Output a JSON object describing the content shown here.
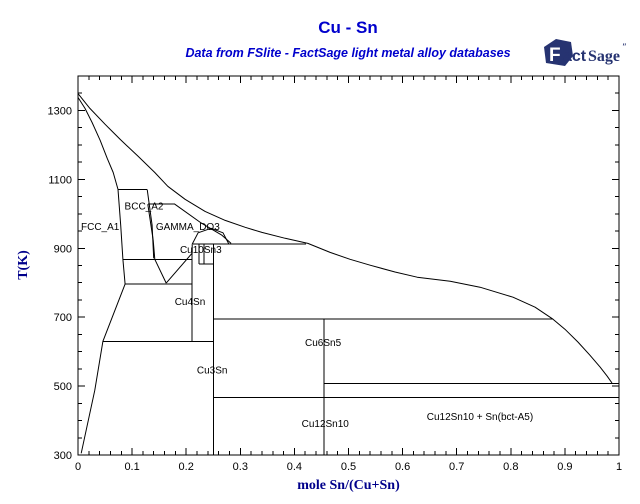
{
  "title": "Cu - Sn",
  "subtitle": "Data from FSlite - FactSage light metal alloy databases",
  "logo": {
    "f": "F",
    "act": "act",
    "sage": "Sage",
    "mark": "″"
  },
  "colors": {
    "title_blue": "#0000CC",
    "axis_title_blue": "#00008B",
    "logo_navy": "#263371",
    "line_black": "#000000",
    "background": "#FFFFFF"
  },
  "axes": {
    "x": {
      "label": "mole Sn/(Cu+Sn)",
      "min": 0,
      "max": 1,
      "major_ticks": [
        0,
        0.1,
        0.2,
        0.3,
        0.4,
        0.5,
        0.6,
        0.7,
        0.8,
        0.9,
        1
      ],
      "tick_labels": [
        "0",
        "0.1",
        "0.2",
        "0.3",
        "0.4",
        "0.5",
        "0.6",
        "0.7",
        "0.8",
        "0.9",
        "1"
      ],
      "minor_step": 0.02
    },
    "y": {
      "label": "T(K)",
      "min": 300,
      "max": 1400,
      "major_ticks": [
        300,
        500,
        700,
        900,
        1100,
        1300
      ],
      "tick_labels": [
        "300",
        "500",
        "700",
        "900",
        "1100",
        "1300"
      ],
      "minor_step": 50
    }
  },
  "chart_data": {
    "type": "line",
    "description": "Cu-Sn binary phase diagram, T(K) vs mole Sn/(Cu+Sn)",
    "xlabel": "mole Sn/(Cu+Sn)",
    "ylabel": "T(K)",
    "xlim": [
      0,
      1
    ],
    "ylim": [
      300,
      1400
    ],
    "grid": false,
    "phase_labels": [
      {
        "text": "FCC_A1",
        "x": 0.041,
        "T": 963
      },
      {
        "text": "BCC_A2",
        "x": 0.122,
        "T": 1022
      },
      {
        "text": "GAMMA_DO3",
        "x": 0.203,
        "T": 963
      },
      {
        "text": "Cu10Sn3",
        "x": 0.227,
        "T": 896
      },
      {
        "text": "Cu4Sn",
        "x": 0.207,
        "T": 746
      },
      {
        "text": "Cu3Sn",
        "x": 0.248,
        "T": 546
      },
      {
        "text": "Cu6Sn5",
        "x": 0.453,
        "T": 627
      },
      {
        "text": "Cu12Sn10",
        "x": 0.457,
        "T": 392
      },
      {
        "text": "Cu12Sn10 + Sn(bct-A5)",
        "x": 0.743,
        "T": 412
      }
    ],
    "boundaries": [
      {
        "name": "liquidus",
        "points": [
          [
            0,
            1349
          ],
          [
            0.022,
            1306
          ],
          [
            0.05,
            1260
          ],
          [
            0.078,
            1216
          ],
          [
            0.111,
            1167
          ],
          [
            0.142,
            1120
          ],
          [
            0.166,
            1080
          ],
          [
            0.198,
            1042
          ],
          [
            0.235,
            1007
          ],
          [
            0.272,
            981
          ],
          [
            0.309,
            961
          ],
          [
            0.34,
            946
          ],
          [
            0.383,
            929
          ],
          [
            0.425,
            914
          ],
          [
            0.466,
            888
          ],
          [
            0.503,
            868
          ],
          [
            0.54,
            851
          ],
          [
            0.586,
            831
          ],
          [
            0.627,
            816
          ],
          [
            0.688,
            804
          ],
          [
            0.743,
            787
          ],
          [
            0.804,
            758
          ],
          [
            0.845,
            729
          ],
          [
            0.878,
            694
          ],
          [
            0.9,
            665
          ],
          [
            0.924,
            628
          ],
          [
            0.946,
            590
          ],
          [
            0.965,
            555
          ],
          [
            0.978,
            529
          ],
          [
            0.987,
            509
          ]
        ]
      },
      {
        "name": "fcc-solidus",
        "points": [
          [
            0,
            1338
          ],
          [
            0.013,
            1306
          ],
          [
            0.026,
            1265
          ],
          [
            0.041,
            1213
          ],
          [
            0.054,
            1161
          ],
          [
            0.065,
            1120
          ],
          [
            0.074,
            1071
          ]
        ]
      },
      {
        "name": "fcc-right-boundary",
        "points": [
          [
            0.074,
            1071
          ],
          [
            0.079,
            967
          ],
          [
            0.083,
            868
          ],
          [
            0.087,
            796
          ],
          [
            0.046,
            630
          ],
          [
            0.031,
            488
          ],
          [
            0.006,
            305
          ]
        ]
      },
      {
        "name": "peritectic-line-1071K",
        "points": [
          [
            0.074,
            1071
          ],
          [
            0.128,
            1071
          ]
        ]
      },
      {
        "name": "bcc-right-boundary",
        "points": [
          [
            0.128,
            1071
          ],
          [
            0.137,
            967
          ],
          [
            0.14,
            871
          ]
        ]
      },
      {
        "name": "peritectic-line-1028K",
        "points": [
          [
            0.129,
            1028
          ],
          [
            0.179,
            1028
          ]
        ]
      },
      {
        "name": "gamma-left-boundary",
        "points": [
          [
            0.129,
            1028
          ],
          [
            0.139,
            923
          ],
          [
            0.142,
            868
          ],
          [
            0.163,
            799
          ]
        ]
      },
      {
        "name": "gamma-right-dome",
        "points": [
          [
            0.179,
            1028
          ],
          [
            0.226,
            975
          ],
          [
            0.266,
            938
          ],
          [
            0.283,
            914
          ]
        ]
      },
      {
        "name": "gamma-arch",
        "points": [
          [
            0.211,
            912
          ],
          [
            0.222,
            945
          ],
          [
            0.246,
            958
          ],
          [
            0.268,
            945
          ],
          [
            0.279,
            912
          ]
        ]
      },
      {
        "name": "gamma-delta-boundary",
        "points": [
          [
            0.211,
            912
          ],
          [
            0.211,
            886
          ],
          [
            0.163,
            799
          ]
        ]
      },
      {
        "name": "cu4sn-right-boundary",
        "points": [
          [
            0.211,
            886
          ],
          [
            0.211,
            630
          ]
        ]
      },
      {
        "name": "eutectoid-line-868K",
        "points": [
          [
            0.083,
            868
          ],
          [
            0.211,
            868
          ]
        ]
      },
      {
        "name": "eutectoid-line-796K",
        "points": [
          [
            0.087,
            796
          ],
          [
            0.211,
            796
          ]
        ]
      },
      {
        "name": "peritectic-line-913K",
        "points": [
          [
            0.213,
            913
          ],
          [
            0.421,
            913
          ]
        ]
      },
      {
        "name": "cu10sn3-left-boundary",
        "points": [
          [
            0.224,
            913
          ],
          [
            0.224,
            855
          ]
        ]
      },
      {
        "name": "cu10sn3-right-boundary",
        "points": [
          [
            0.233,
            913
          ],
          [
            0.233,
            855
          ]
        ]
      },
      {
        "name": "cu10sn3-bottom-855K",
        "points": [
          [
            0.224,
            855
          ],
          [
            0.25,
            855
          ]
        ]
      },
      {
        "name": "cu3sn-vertical",
        "points": [
          [
            0.25,
            913
          ],
          [
            0.25,
            300
          ]
        ]
      },
      {
        "name": "eutectoid-line-630K",
        "points": [
          [
            0.046,
            630
          ],
          [
            0.25,
            630
          ]
        ]
      },
      {
        "name": "peritectic-line-694K",
        "points": [
          [
            0.25,
            694
          ],
          [
            0.878,
            694
          ]
        ]
      },
      {
        "name": "cu6sn5-vertical",
        "points": [
          [
            0.4545,
            694
          ],
          [
            0.4545,
            300
          ]
        ]
      },
      {
        "name": "eutectic-line-508K",
        "points": [
          [
            0.4545,
            508
          ],
          [
            1,
            508
          ]
        ]
      },
      {
        "name": "transition-line-467K",
        "points": [
          [
            0.25,
            467
          ],
          [
            1,
            467
          ]
        ]
      }
    ]
  }
}
